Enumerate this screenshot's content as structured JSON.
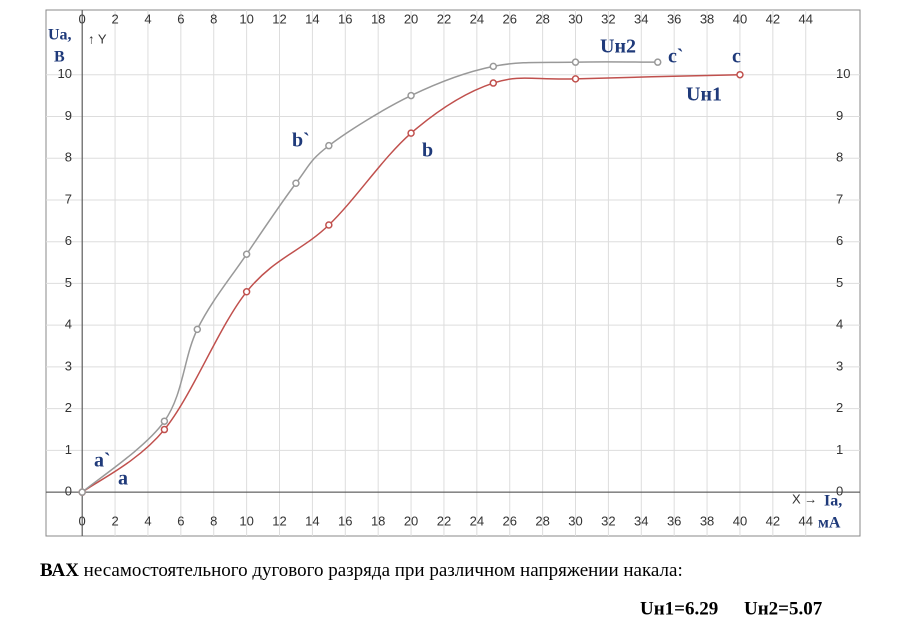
{
  "chart_data": {
    "type": "line",
    "y_label_top": "Ua,",
    "y_label_unit": "B",
    "y_axis_name": "↑ Y",
    "x_axis_name": "X →",
    "x_label": "Ia,",
    "x_label_unit": "мА",
    "xlim": [
      -2.2,
      47.3
    ],
    "ylim": [
      -1.05,
      11.55
    ],
    "xticks": [
      0,
      2,
      4,
      6,
      8,
      10,
      12,
      14,
      16,
      18,
      20,
      22,
      24,
      26,
      28,
      30,
      32,
      34,
      36,
      38,
      40,
      42,
      44
    ],
    "yticks": [
      0,
      1,
      2,
      3,
      4,
      5,
      6,
      7,
      8,
      9,
      10
    ],
    "grid": true,
    "series": [
      {
        "name": "Uн1",
        "color": "#c0504d",
        "x": [
          0,
          5,
          10,
          15,
          20,
          25,
          30,
          40
        ],
        "values": [
          0,
          1.5,
          4.8,
          6.4,
          8.6,
          9.8,
          9.9,
          10
        ]
      },
      {
        "name": "Uн2",
        "color": "#999999",
        "x": [
          0,
          5,
          7,
          10,
          13,
          15,
          20,
          25,
          30,
          35
        ],
        "values": [
          0,
          1.7,
          3.9,
          5.7,
          7.4,
          8.3,
          9.5,
          10.2,
          10.3,
          10.3
        ]
      }
    ],
    "annotations": [
      "a`",
      "a",
      "b`",
      "b",
      "c`",
      "c"
    ],
    "caption_bold": "ВАХ",
    "caption": "несамостоятельного  дугового разряда при различном напряжении накала:",
    "caption_values": [
      "Uн1=6.29",
      "Uн2=5.07"
    ]
  }
}
